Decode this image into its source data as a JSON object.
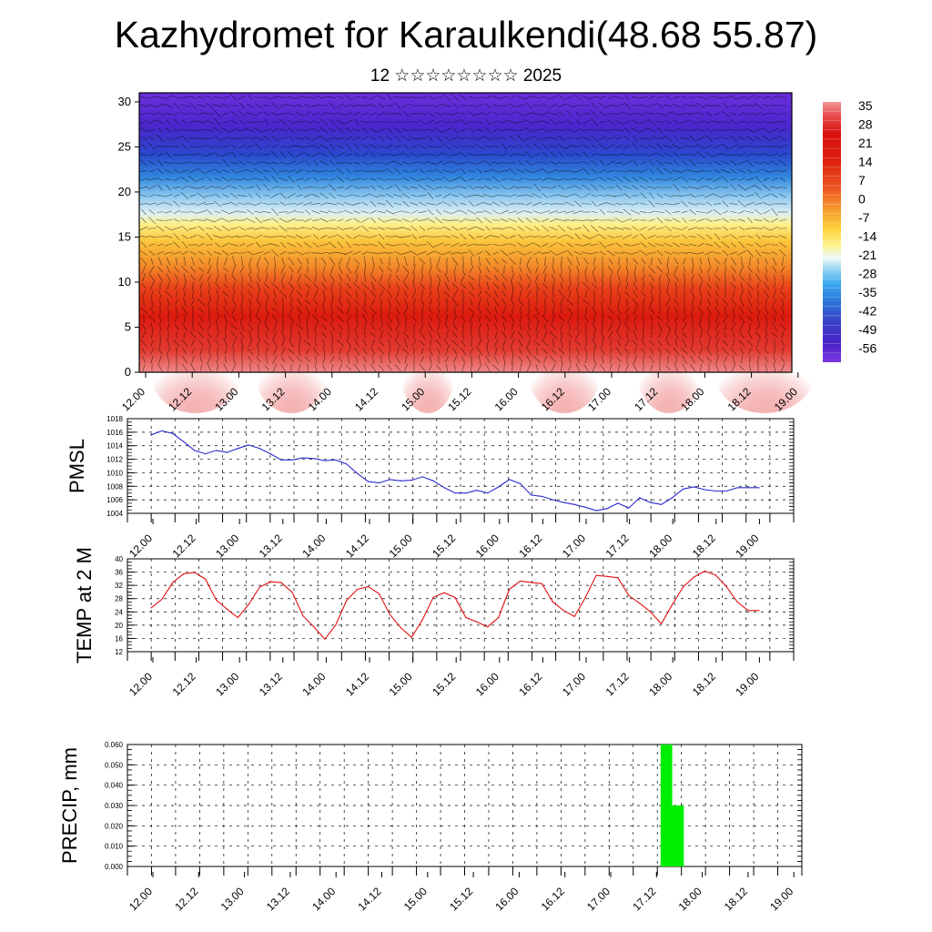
{
  "title": "Kazhydromet for Karaulkendi(48.68 55.87)",
  "subtitle": "12 ☆☆☆☆☆☆☆☆ 2025",
  "colors": {
    "pmsl_line": "#2a2acc",
    "temp_line": "#e01010",
    "precip_bar": "#00ee00",
    "grid": "#000000"
  },
  "chart_data": [
    {
      "type": "heatmap",
      "title": "",
      "xlabel": "",
      "ylabel": "",
      "x_ticks": [
        "12.00",
        "12.12",
        "13.00",
        "13.12",
        "14.00",
        "14.12",
        "15.00",
        "15.12",
        "16.00",
        "16.12",
        "17.00",
        "17.12",
        "18.00",
        "18.12",
        "19.00"
      ],
      "y_ticks": [
        "0",
        "5",
        "10",
        "15",
        "20",
        "25",
        "30"
      ],
      "ylim": [
        0,
        31
      ],
      "colorbar_labels": [
        "35",
        "28",
        "21",
        "14",
        "7",
        "0",
        "-7",
        "-14",
        "-21",
        "-28",
        "-35",
        "-42",
        "-49",
        "-56"
      ],
      "colorbar_range": [
        35,
        -56
      ],
      "overlay": "wind vectors",
      "grid": false
    },
    {
      "type": "line",
      "ylabel": "PMSL",
      "x_ticks": [
        "12.00",
        "12.12",
        "13.00",
        "13.12",
        "14.00",
        "14.12",
        "15.00",
        "15.12",
        "16.00",
        "16.12",
        "17.00",
        "17.12",
        "18.00",
        "18.12",
        "19.00"
      ],
      "y_ticks": [
        "1018",
        "1016",
        "1014",
        "1012",
        "1010",
        "1008",
        "1006",
        "1004"
      ],
      "ylim": [
        1004,
        1018
      ],
      "x_hours": [
        0,
        3,
        6,
        9,
        12,
        15,
        18,
        21,
        24,
        27,
        30,
        33,
        36,
        39,
        42,
        45,
        48,
        51,
        54,
        57,
        60,
        63,
        66,
        69,
        72,
        75,
        78,
        81,
        84,
        87,
        90,
        93,
        96,
        99,
        102,
        105,
        108,
        111,
        114,
        117,
        120,
        123,
        126,
        129,
        132,
        135,
        138,
        141,
        144,
        147,
        150,
        153,
        156,
        159,
        162,
        165,
        168
      ],
      "values": [
        1015.6,
        1016.2,
        1015.8,
        1014.6,
        1013.3,
        1012.8,
        1013.3,
        1013.0,
        1013.6,
        1014.1,
        1013.6,
        1012.8,
        1011.9,
        1011.9,
        1012.2,
        1012.1,
        1011.8,
        1011.9,
        1011.3,
        1009.9,
        1008.7,
        1008.5,
        1009.0,
        1008.8,
        1008.9,
        1009.4,
        1008.8,
        1007.8,
        1007.0,
        1007.0,
        1007.4,
        1007.0,
        1007.9,
        1009.0,
        1008.4,
        1006.7,
        1006.5,
        1006.0,
        1005.6,
        1005.3,
        1004.9,
        1004.4,
        1004.7,
        1005.5,
        1004.8,
        1006.3,
        1005.6,
        1005.3,
        1006.3,
        1007.6,
        1007.9,
        1007.5,
        1007.3,
        1007.3,
        1007.8,
        1007.8,
        1007.8
      ],
      "grid": true
    },
    {
      "type": "line",
      "ylabel": "TEMP at 2 M",
      "x_ticks": [
        "12.00",
        "12.12",
        "13.00",
        "13.12",
        "14.00",
        "14.12",
        "15.00",
        "15.12",
        "16.00",
        "16.12",
        "17.00",
        "17.12",
        "18.00",
        "18.12",
        "19.00"
      ],
      "y_ticks": [
        "40",
        "36",
        "32",
        "28",
        "24",
        "20",
        "16",
        "12"
      ],
      "ylim": [
        12,
        40
      ],
      "x_hours": [
        0,
        3,
        6,
        9,
        12,
        15,
        18,
        21,
        24,
        27,
        30,
        33,
        36,
        39,
        42,
        45,
        48,
        51,
        54,
        57,
        60,
        63,
        66,
        69,
        72,
        75,
        78,
        81,
        84,
        87,
        90,
        93,
        96,
        99,
        102,
        105,
        108,
        111,
        114,
        117,
        120,
        123,
        126,
        129,
        132,
        135,
        138,
        141,
        144,
        147,
        150,
        153,
        156,
        159,
        162,
        165,
        168
      ],
      "values": [
        25.2,
        27.8,
        32.9,
        35.5,
        35.9,
        33.9,
        27.6,
        24.8,
        22.3,
        26.3,
        31.5,
        33.1,
        32.8,
        29.9,
        22.8,
        19.5,
        15.8,
        20.0,
        27.4,
        30.8,
        31.6,
        29.5,
        23.2,
        19.2,
        16.3,
        21.7,
        28.4,
        29.8,
        28.3,
        22.3,
        21.0,
        19.5,
        22.3,
        30.8,
        33.3,
        32.9,
        32.5,
        27.0,
        24.4,
        22.6,
        28.3,
        35.0,
        34.7,
        34.3,
        28.9,
        26.6,
        24.0,
        20.4,
        26.2,
        31.5,
        34.5,
        36.3,
        35.1,
        31.6,
        27.0,
        24.4,
        24.4
      ],
      "grid": true
    },
    {
      "type": "bar",
      "ylabel": "PRECIP, mm",
      "x_ticks": [
        "12.00",
        "12.12",
        "13.00",
        "13.12",
        "14.00",
        "14.12",
        "15.00",
        "15.12",
        "16.00",
        "16.12",
        "17.00",
        "17.12",
        "18.00",
        "18.12",
        "19.00"
      ],
      "y_ticks": [
        "0.060",
        "0.050",
        "0.040",
        "0.030",
        "0.020",
        "0.010",
        "0.000"
      ],
      "ylim": [
        0,
        0.06
      ],
      "bars": [
        {
          "start_hour": 135,
          "end_hour": 138,
          "value": 0.06
        },
        {
          "start_hour": 138,
          "end_hour": 141,
          "value": 0.03
        }
      ],
      "grid": true
    }
  ]
}
